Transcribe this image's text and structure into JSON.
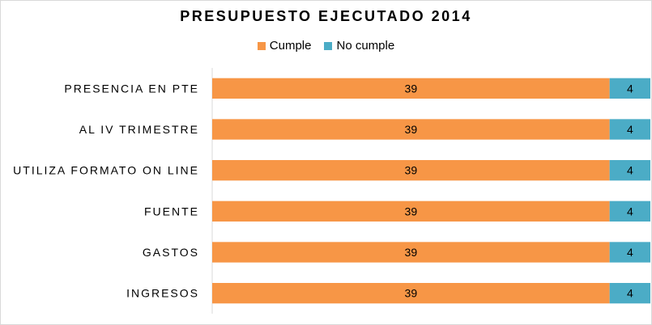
{
  "chart_data": {
    "type": "bar",
    "orientation": "horizontal",
    "stacked": "percent",
    "title": "PRESUPUESTO EJECUTADO 2014",
    "categories": [
      "PRESENCIA EN PTE",
      "AL IV TRIMESTRE",
      "UTILIZA FORMATO ON LINE",
      "FUENTE",
      "GASTOS",
      "INGRESOS"
    ],
    "series": [
      {
        "name": "Cumple",
        "color": "#f79646",
        "values": [
          39,
          39,
          39,
          39,
          39,
          39
        ]
      },
      {
        "name": "No cumple",
        "color": "#4bacc6",
        "values": [
          4,
          4,
          4,
          4,
          4,
          4
        ]
      }
    ],
    "legend_position": "top",
    "grid": false
  }
}
